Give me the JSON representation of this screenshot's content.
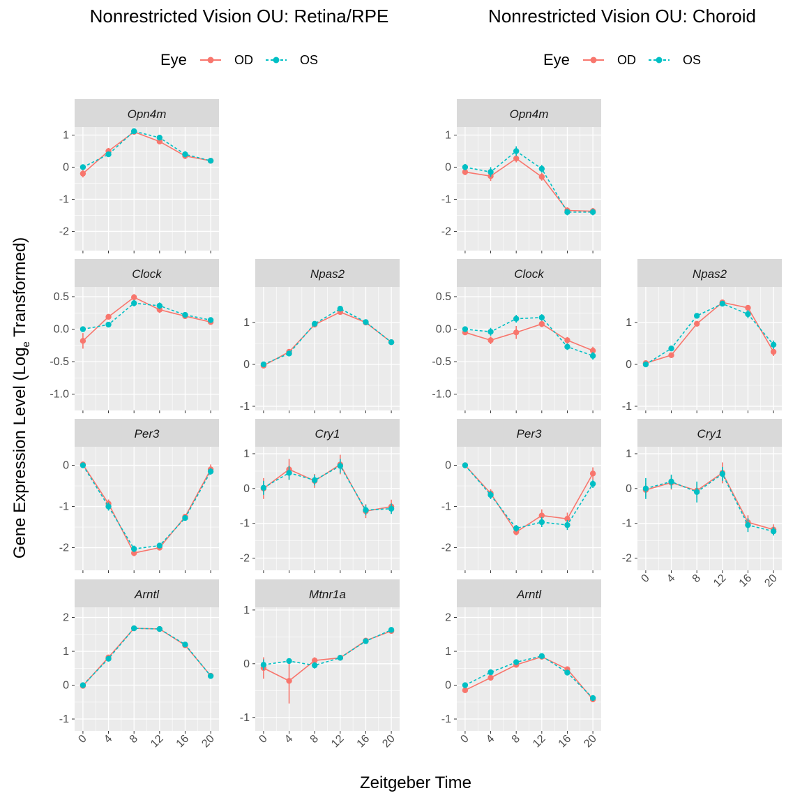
{
  "figure": {
    "xlabel": "Zeitgeber Time",
    "ylabel_main": "Gene Expression Level  (Log",
    "ylabel_sub": "e",
    "ylabel_tail": " Transformed)"
  },
  "legend": {
    "title": "Eye",
    "items": [
      {
        "label": "OD",
        "color": "#F8766D"
      },
      {
        "label": "OS",
        "color": "#00BFC4"
      }
    ]
  },
  "chart_data": [
    {
      "type": "line",
      "title": "Nonrestricted Vision OU: Retina/RPE",
      "x_ticks": [
        0,
        4,
        8,
        12,
        16,
        20
      ],
      "panels": [
        {
          "gene": "Opn4m",
          "ylim": [
            -2.6,
            1.25
          ],
          "yticks": [
            -2,
            -1,
            0,
            1
          ],
          "ytick_labels": [
            "-2",
            "-1",
            "0",
            "1"
          ],
          "series": [
            {
              "name": "OD",
              "x": [
                0,
                4,
                8,
                12,
                16,
                20
              ],
              "y": [
                -0.2,
                0.5,
                1.1,
                0.8,
                0.35,
                0.2
              ],
              "err": [
                0.12,
                0.1,
                0.05,
                0.06,
                0.1,
                0.05
              ]
            },
            {
              "name": "OS",
              "x": [
                0,
                4,
                8,
                12,
                16,
                20
              ],
              "y": [
                0.0,
                0.4,
                1.12,
                0.92,
                0.4,
                0.2
              ],
              "err": [
                0.05,
                0.08,
                0.05,
                0.05,
                0.1,
                0.05
              ]
            }
          ]
        },
        {
          "gene": "Clock",
          "ylim": [
            -1.25,
            0.65
          ],
          "yticks": [
            -1.0,
            -0.5,
            0.0,
            0.5
          ],
          "ytick_labels": [
            "-1.0",
            "-0.5",
            "0.0",
            "0.5"
          ],
          "series": [
            {
              "name": "OD",
              "x": [
                0,
                4,
                8,
                12,
                16,
                20
              ],
              "y": [
                -0.18,
                0.19,
                0.49,
                0.3,
                0.2,
                0.11
              ],
              "err": [
                0.12,
                0.03,
                0.05,
                0.05,
                0.03,
                0.03
              ]
            },
            {
              "name": "OS",
              "x": [
                0,
                4,
                8,
                12,
                16,
                20
              ],
              "y": [
                0.0,
                0.07,
                0.4,
                0.36,
                0.22,
                0.14
              ],
              "err": [
                0.03,
                0.03,
                0.05,
                0.05,
                0.03,
                0.03
              ]
            }
          ]
        },
        {
          "gene": "Npas2",
          "ylim": [
            -1.1,
            1.85
          ],
          "yticks": [
            -1,
            0,
            1
          ],
          "ytick_labels": [
            "-1",
            "0",
            "1"
          ],
          "series": [
            {
              "name": "OD",
              "x": [
                0,
                4,
                8,
                12,
                16,
                20
              ],
              "y": [
                -0.03,
                0.3,
                0.95,
                1.25,
                1.0,
                0.53
              ],
              "err": [
                0.05,
                0.05,
                0.04,
                0.05,
                0.04,
                0.04
              ]
            },
            {
              "name": "OS",
              "x": [
                0,
                4,
                8,
                12,
                16,
                20
              ],
              "y": [
                0.0,
                0.26,
                0.97,
                1.33,
                1.01,
                0.53
              ],
              "err": [
                0.04,
                0.05,
                0.04,
                0.05,
                0.04,
                0.04
              ]
            }
          ]
        },
        {
          "gene": "Per3",
          "ylim": [
            -2.55,
            0.45
          ],
          "yticks": [
            -2,
            -1,
            0
          ],
          "ytick_labels": [
            "-2",
            "-1",
            "0"
          ],
          "series": [
            {
              "name": "OD",
              "x": [
                0,
                4,
                8,
                12,
                16,
                20
              ],
              "y": [
                0.02,
                -0.93,
                -2.13,
                -2.0,
                -1.25,
                -0.1
              ],
              "err": [
                0.07,
                0.1,
                0.08,
                0.06,
                0.05,
                0.12
              ]
            },
            {
              "name": "OS",
              "x": [
                0,
                4,
                8,
                12,
                16,
                20
              ],
              "y": [
                0.0,
                -1.0,
                -2.03,
                -1.95,
                -1.28,
                -0.15
              ],
              "err": [
                0.07,
                0.1,
                0.08,
                0.06,
                0.05,
                0.08
              ]
            }
          ]
        },
        {
          "gene": "Cry1",
          "ylim": [
            -2.35,
            1.2
          ],
          "yticks": [
            -2,
            -1,
            0,
            1
          ],
          "ytick_labels": [
            "-2",
            "-1",
            "0",
            "1"
          ],
          "series": [
            {
              "name": "OD",
              "x": [
                0,
                4,
                8,
                12,
                16,
                20
              ],
              "y": [
                0.0,
                0.55,
                0.22,
                0.69,
                -0.65,
                -0.52
              ],
              "err": [
                0.3,
                0.3,
                0.2,
                0.28,
                0.2,
                0.2
              ]
            },
            {
              "name": "OS",
              "x": [
                0,
                4,
                8,
                12,
                16,
                20
              ],
              "y": [
                0.02,
                0.45,
                0.24,
                0.65,
                -0.62,
                -0.58
              ],
              "err": [
                0.2,
                0.2,
                0.15,
                0.2,
                0.15,
                0.15
              ]
            }
          ]
        },
        {
          "gene": "Arntl",
          "ylim": [
            -1.35,
            2.3
          ],
          "yticks": [
            -1,
            0,
            1,
            2
          ],
          "ytick_labels": [
            "-1",
            "0",
            "1",
            "2"
          ],
          "series": [
            {
              "name": "OD",
              "x": [
                0,
                4,
                8,
                12,
                16,
                20
              ],
              "y": [
                -0.02,
                0.82,
                1.68,
                1.66,
                1.18,
                0.28
              ],
              "err": [
                0.05,
                0.05,
                0.04,
                0.04,
                0.05,
                0.05
              ]
            },
            {
              "name": "OS",
              "x": [
                0,
                4,
                8,
                12,
                16,
                20
              ],
              "y": [
                0.0,
                0.78,
                1.68,
                1.66,
                1.2,
                0.27
              ],
              "err": [
                0.05,
                0.05,
                0.04,
                0.04,
                0.05,
                0.05
              ]
            }
          ]
        },
        {
          "gene": "Mtnr1a",
          "ylim": [
            -1.25,
            1.05
          ],
          "yticks": [
            -1,
            0,
            1
          ],
          "ytick_labels": [
            "-1",
            "0",
            "1"
          ],
          "series": [
            {
              "name": "OD",
              "x": [
                0,
                4,
                8,
                12,
                16,
                20
              ],
              "y": [
                -0.08,
                -0.32,
                0.06,
                0.11,
                0.43,
                0.61
              ],
              "err": [
                0.2,
                0.42,
                0.06,
                0.05,
                0.05,
                0.05
              ]
            },
            {
              "name": "OS",
              "x": [
                0,
                4,
                8,
                12,
                16,
                20
              ],
              "y": [
                -0.02,
                0.05,
                -0.03,
                0.11,
                0.42,
                0.63
              ],
              "err": [
                0.1,
                0.05,
                0.06,
                0.05,
                0.05,
                0.05
              ]
            }
          ]
        }
      ]
    },
    {
      "type": "line",
      "title": "Nonrestricted Vision OU: Choroid",
      "x_ticks": [
        0,
        4,
        8,
        12,
        16,
        20
      ],
      "panels": [
        {
          "gene": "Opn4m",
          "ylim": [
            -2.6,
            1.25
          ],
          "yticks": [
            -2,
            -1,
            0,
            1
          ],
          "ytick_labels": [
            "-2",
            "-1",
            "0",
            "1"
          ],
          "series": [
            {
              "name": "OD",
              "x": [
                0,
                4,
                8,
                12,
                16,
                20
              ],
              "y": [
                -0.15,
                -0.28,
                0.27,
                -0.3,
                -1.35,
                -1.37
              ],
              "err": [
                0.1,
                0.15,
                0.12,
                0.12,
                0.1,
                0.1
              ]
            },
            {
              "name": "OS",
              "x": [
                0,
                4,
                8,
                12,
                16,
                20
              ],
              "y": [
                0.0,
                -0.15,
                0.5,
                -0.05,
                -1.4,
                -1.4
              ],
              "err": [
                0.1,
                0.15,
                0.15,
                0.12,
                0.1,
                0.1
              ]
            }
          ]
        },
        {
          "gene": "Clock",
          "ylim": [
            -1.25,
            0.65
          ],
          "yticks": [
            -1.0,
            -0.5,
            0.0,
            0.5
          ],
          "ytick_labels": [
            "-1.0",
            "-0.5",
            "0.0",
            "0.5"
          ],
          "series": [
            {
              "name": "OD",
              "x": [
                0,
                4,
                8,
                12,
                16,
                20
              ],
              "y": [
                -0.05,
                -0.17,
                -0.05,
                0.08,
                -0.17,
                -0.33
              ],
              "err": [
                0.04,
                0.06,
                0.1,
                0.05,
                0.05,
                0.06
              ]
            },
            {
              "name": "OS",
              "x": [
                0,
                4,
                8,
                12,
                16,
                20
              ],
              "y": [
                0.0,
                -0.04,
                0.16,
                0.18,
                -0.27,
                -0.41
              ],
              "err": [
                0.04,
                0.06,
                0.06,
                0.05,
                0.05,
                0.06
              ]
            }
          ]
        },
        {
          "gene": "Npas2",
          "ylim": [
            -1.1,
            1.85
          ],
          "yticks": [
            -1,
            0,
            1
          ],
          "ytick_labels": [
            "-1",
            "0",
            "1"
          ],
          "series": [
            {
              "name": "OD",
              "x": [
                0,
                4,
                8,
                12,
                16,
                20
              ],
              "y": [
                0.03,
                0.22,
                0.97,
                1.48,
                1.35,
                0.3
              ],
              "err": [
                0.04,
                0.05,
                0.05,
                0.05,
                0.06,
                0.1
              ]
            },
            {
              "name": "OS",
              "x": [
                0,
                4,
                8,
                12,
                16,
                20
              ],
              "y": [
                0.0,
                0.38,
                1.16,
                1.45,
                1.2,
                0.47
              ],
              "err": [
                0.04,
                0.05,
                0.05,
                0.05,
                0.1,
                0.1
              ]
            }
          ]
        },
        {
          "gene": "Per3",
          "ylim": [
            -2.55,
            0.45
          ],
          "yticks": [
            -2,
            -1,
            0
          ],
          "ytick_labels": [
            "-2",
            "-1",
            "0"
          ],
          "series": [
            {
              "name": "OD",
              "x": [
                0,
                4,
                8,
                12,
                16,
                20
              ],
              "y": [
                0.0,
                -0.68,
                -1.62,
                -1.22,
                -1.3,
                -0.2
              ],
              "err": [
                0.07,
                0.1,
                0.08,
                0.15,
                0.15,
                0.15
              ]
            },
            {
              "name": "OS",
              "x": [
                0,
                4,
                8,
                12,
                16,
                20
              ],
              "y": [
                0.0,
                -0.72,
                -1.53,
                -1.38,
                -1.45,
                -0.45
              ],
              "err": [
                0.07,
                0.1,
                0.08,
                0.12,
                0.12,
                0.1
              ]
            }
          ]
        },
        {
          "gene": "Cry1",
          "ylim": [
            -2.35,
            1.2
          ],
          "yticks": [
            -2,
            -1,
            0,
            1
          ],
          "ytick_labels": [
            "-2",
            "-1",
            "0",
            "1"
          ],
          "series": [
            {
              "name": "OD",
              "x": [
                0,
                4,
                8,
                12,
                16,
                20
              ],
              "y": [
                -0.04,
                0.17,
                -0.06,
                0.45,
                -0.97,
                -1.18
              ],
              "err": [
                0.2,
                0.2,
                0.2,
                0.3,
                0.2,
                0.15
              ]
            },
            {
              "name": "OS",
              "x": [
                0,
                4,
                8,
                12,
                16,
                20
              ],
              "y": [
                0.0,
                0.2,
                -0.1,
                0.42,
                -1.05,
                -1.23
              ],
              "err": [
                0.3,
                0.2,
                0.3,
                0.2,
                0.2,
                0.12
              ]
            }
          ]
        },
        {
          "gene": "Arntl",
          "ylim": [
            -1.35,
            2.3
          ],
          "yticks": [
            -1,
            0,
            1,
            2
          ],
          "ytick_labels": [
            "-1",
            "0",
            "1",
            "2"
          ],
          "series": [
            {
              "name": "OD",
              "x": [
                0,
                4,
                8,
                12,
                16,
                20
              ],
              "y": [
                -0.15,
                0.22,
                0.6,
                0.84,
                0.47,
                -0.42
              ],
              "err": [
                0.05,
                0.05,
                0.05,
                0.05,
                0.05,
                0.08
              ]
            },
            {
              "name": "OS",
              "x": [
                0,
                4,
                8,
                12,
                16,
                20
              ],
              "y": [
                0.0,
                0.38,
                0.68,
                0.86,
                0.37,
                -0.38
              ],
              "err": [
                0.05,
                0.05,
                0.05,
                0.05,
                0.05,
                0.08
              ]
            }
          ]
        }
      ]
    }
  ]
}
